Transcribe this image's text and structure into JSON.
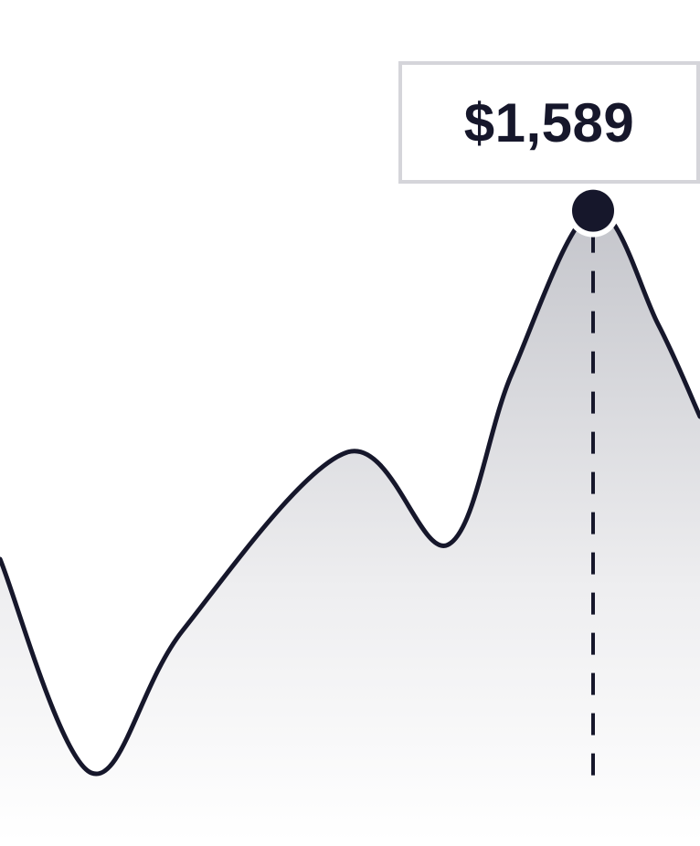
{
  "chart_data": {
    "type": "area",
    "x": [
      0,
      1,
      2,
      3,
      4,
      5,
      6,
      7,
      8
    ],
    "values": [
      1100,
      800,
      1000,
      1250,
      1120,
      1360,
      1589,
      1430,
      1300
    ],
    "highlight": {
      "index": 6,
      "label": "$1,589"
    },
    "ylim": [
      500,
      1750
    ],
    "grid": false,
    "colors": {
      "line": "#16172b",
      "marker": "#16172b",
      "fill_top": "#c4c5cb",
      "fill_bottom": "#ffffff",
      "guide": "#16172b",
      "tooltip_border": "#d5d5da"
    }
  }
}
